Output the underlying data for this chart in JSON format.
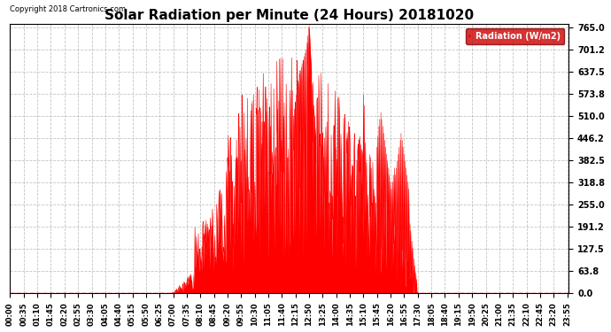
{
  "title": "Solar Radiation per Minute (24 Hours) 20181020",
  "copyright_text": "Copyright 2018 Cartronics.com",
  "legend_label": "Radiation (W/m2)",
  "y_ticks": [
    0.0,
    63.8,
    127.5,
    191.2,
    255.0,
    318.8,
    382.5,
    446.2,
    510.0,
    573.8,
    637.5,
    701.2,
    765.0
  ],
  "y_max": 765.0,
  "y_min": 0.0,
  "bar_color": "#ff0000",
  "background_color": "#ffffff",
  "grid_color": "#aaaaaa",
  "grid_linestyle": "--",
  "dashed_zero_color": "#ff0000",
  "title_fontsize": 11,
  "tick_fontsize": 6,
  "ytick_fontsize": 7,
  "legend_bg_color": "#cc0000",
  "legend_text_color": "#ffffff",
  "sunrise_min": 415,
  "sunset_min": 1055,
  "peak_min": 770,
  "peak_val": 765.0
}
